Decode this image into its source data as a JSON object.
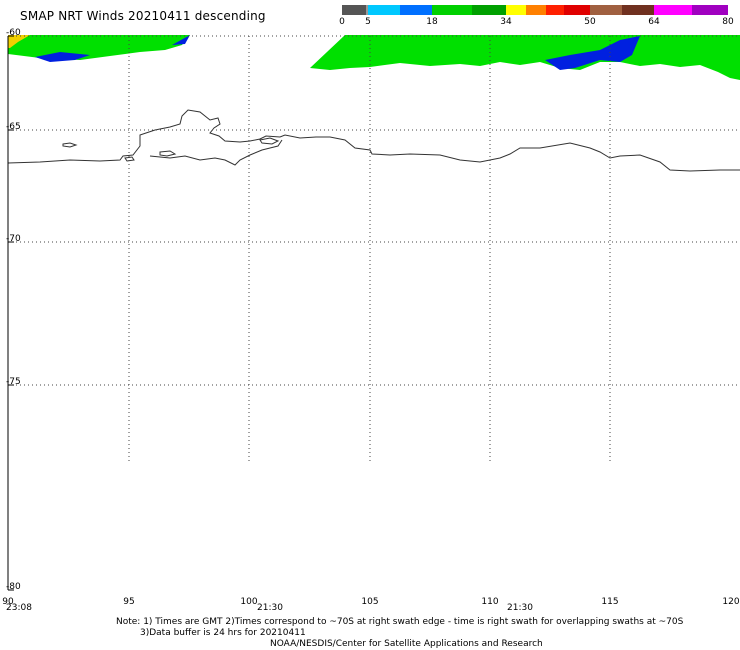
{
  "title": "SMAP NRT Winds  20210411 descending",
  "colorbar": {
    "tick_labels": [
      "0",
      "5",
      "18",
      "34",
      "50",
      "64",
      "80"
    ],
    "colors": [
      "#555555",
      "#999999",
      "#00c8ff",
      "#0070ff",
      "#0000e0",
      "#00d000",
      "#00a000",
      "#ffff00",
      "#ff8000",
      "#ff2000",
      "#e00000",
      "#a06040",
      "#703020",
      "#ff00ff",
      "#a000c0"
    ]
  },
  "map": {
    "lat_labels": [
      "-60",
      "-65",
      "-70",
      "-75",
      "-80"
    ],
    "lon_labels": [
      "90",
      "95",
      "100",
      "105",
      "110",
      "115",
      "120"
    ],
    "swath_times": [
      "23:08",
      "21:30",
      "21:30"
    ],
    "wind_colors": {
      "green": "#00e000",
      "blue": "#0020e0",
      "yellow": "#f0d000"
    }
  },
  "notes": {
    "line1": "Note: 1) Times are GMT  2)Times correspond to ~70S at right swath edge - time is right swath for overlapping swaths at ~70S",
    "line2": "3)Data buffer is 24 hrs for 20210411",
    "line3": "NOAA/NESDIS/Center for Satellite Applications and Research"
  }
}
